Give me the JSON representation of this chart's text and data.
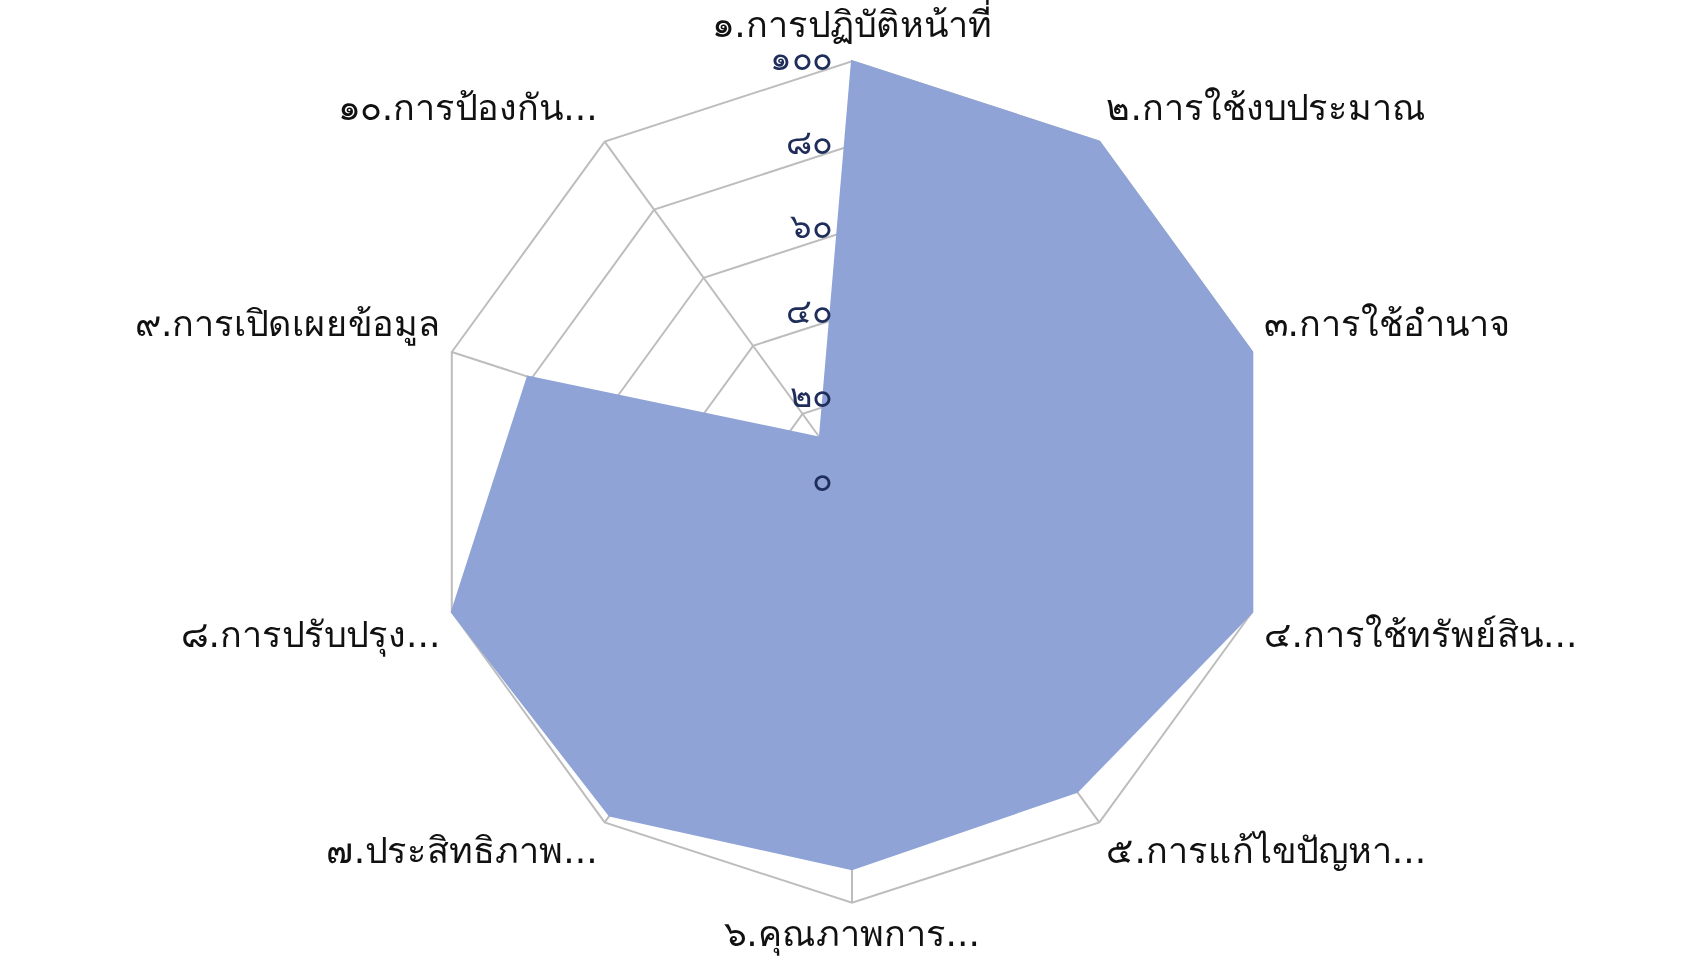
{
  "chart_data": {
    "type": "radar",
    "categories": [
      "๑.การปฏิบัติหน้าที่",
      "๒.การใช้งบประมาณ",
      "๓.การใช้อำนาจ",
      "๔.การใช้ทรัพย์สิน...",
      "๕.การแก้ไขปัญหา...",
      "๖.คุณภาพการ...",
      "๗.ประสิทธิภาพ...",
      "๘.การปรับปรุง...",
      "๙.การเปิดเผยข้อมูล",
      "๑๐.การป้องกัน..."
    ],
    "series": [
      {
        "color": "#8fa3d6",
        "values": [
          100,
          100,
          100,
          100,
          91,
          92,
          98,
          100,
          81,
          13
        ]
      }
    ],
    "ylim": [
      0,
      100
    ],
    "yticks": [
      {
        "value": 0,
        "label": "๐"
      },
      {
        "value": 20,
        "label": "๒๐"
      },
      {
        "value": 40,
        "label": "๔๐"
      },
      {
        "value": 60,
        "label": "๖๐"
      },
      {
        "value": 80,
        "label": "๘๐"
      },
      {
        "value": 100,
        "label": "๑๐๐"
      }
    ],
    "grid": true,
    "marker": "none"
  }
}
